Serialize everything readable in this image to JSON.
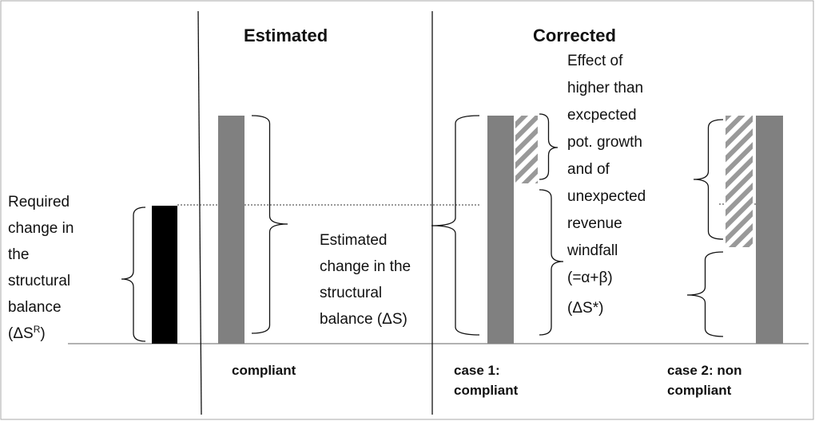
{
  "left_label": {
    "lines": [
      "Required",
      "change in",
      "the",
      "structural",
      "balance"
    ],
    "last": {
      "text": "(ΔS",
      "superscript": "R",
      "close": ")"
    }
  },
  "estimated": {
    "title": "Estimated",
    "label": [
      "Estimated",
      "change in the",
      "structural",
      "balance (ΔS)"
    ],
    "caption": "compliant"
  },
  "corrected": {
    "title": "Corrected",
    "effect_label": [
      "Effect of",
      "higher than",
      "excpected",
      "pot. growth",
      "and of",
      "unexpected",
      "revenue",
      "windfall",
      "(=α+β)"
    ],
    "delta_label": "(ΔS*)",
    "case1": [
      "case 1:",
      "compliant"
    ],
    "case2": [
      "case 2: non",
      "compliant"
    ]
  }
}
